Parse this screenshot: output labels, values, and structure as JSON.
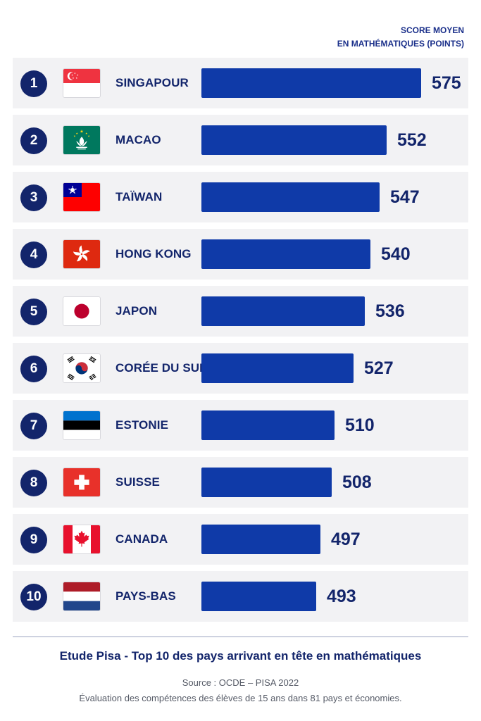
{
  "axis_title": {
    "line1": "SCORE MOYEN",
    "line2": "EN MATHÉMATIQUES (POINTS)"
  },
  "colors": {
    "bar": "#0f3aa8",
    "rank_badge": "#13256b",
    "row_background": "#f2f2f4",
    "text": "#13256b"
  },
  "chart_data": {
    "type": "bar",
    "orientation": "horizontal",
    "title": "Etude Pisa - Top 10 des pays arrivant en tête en mathématiques",
    "xlabel": "SCORE MOYEN EN MATHÉMATIQUES (POINTS)",
    "categories": [
      "SINGAPOUR",
      "MACAO",
      "TAÏWAN",
      "HONG KONG",
      "JAPON",
      "CORÉE DU SUD",
      "ESTONIE",
      "SUISSE",
      "CANADA",
      "PAYS-BAS"
    ],
    "values": [
      575,
      552,
      547,
      540,
      536,
      527,
      510,
      508,
      497,
      493
    ],
    "ranks": [
      "1",
      "2",
      "3",
      "4",
      "5",
      "6",
      "7",
      "8",
      "9",
      "10"
    ],
    "flags": [
      "singapore-flag-icon",
      "macao-flag-icon",
      "taiwan-flag-icon",
      "hong-kong-flag-icon",
      "japan-flag-icon",
      "south-korea-flag-icon",
      "estonia-flag-icon",
      "switzerland-flag-icon",
      "canada-flag-icon",
      "netherlands-flag-icon"
    ],
    "grid": false,
    "legend": "none"
  },
  "footer": {
    "title": "Etude Pisa - Top 10 des pays arrivant en tête en mathématiques",
    "source": "Source : OCDE – PISA 2022",
    "note": "Évaluation des compétences des élèves de 15 ans dans 81 pays et économies."
  }
}
